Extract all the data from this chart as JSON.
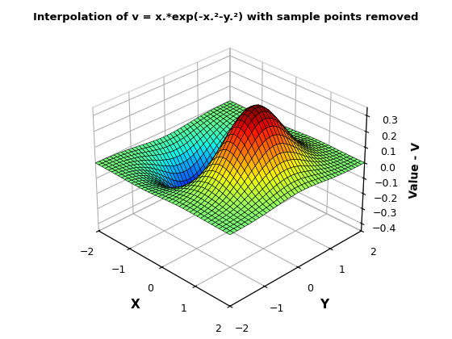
{
  "title": "Interpolation of v = x.*exp(-x.²-y.²) with sample points removed",
  "xlabel": "X",
  "ylabel": "Y",
  "zlabel": "Value - V",
  "x_range": [
    -2,
    2
  ],
  "y_range": [
    -2,
    2
  ],
  "z_ticks": [
    0.3,
    0.2,
    0.1,
    0.0,
    -0.1,
    -0.2,
    -0.3,
    -0.4
  ],
  "n_grid": 40,
  "colormap": "jet",
  "elev": 30,
  "azim": -225,
  "background_color": "#ffffff"
}
